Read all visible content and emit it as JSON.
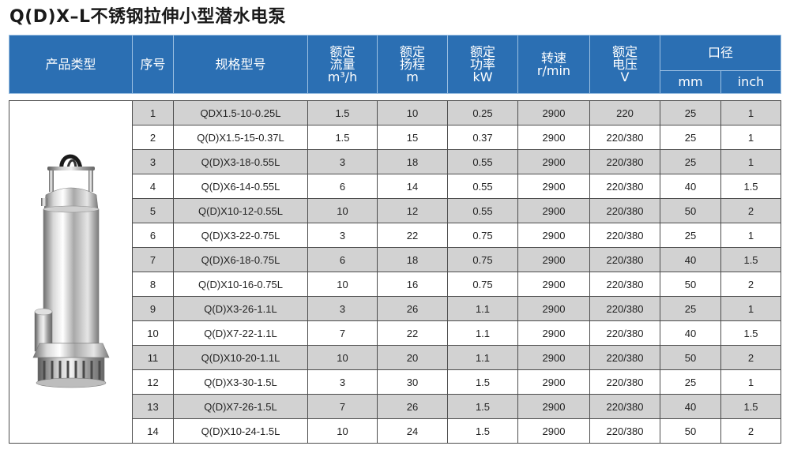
{
  "title": "Q(D)X–L不锈钢拉伸小型潜水电泵",
  "colors": {
    "header_bg": "#2b6fb3",
    "header_text": "#ffffff",
    "shaded_row": "#d2d2d2",
    "plain_row": "#ffffff"
  },
  "product_image": "stainless-steel-submersible-pump",
  "headers": {
    "product_type": "产品类型",
    "seq": "序号",
    "model": "规格型号",
    "flow": [
      "额定",
      "流量",
      "m³/h"
    ],
    "head": [
      "额定",
      "扬程",
      "m"
    ],
    "power": [
      "额定",
      "功率",
      "kW"
    ],
    "speed": [
      "转速",
      "r/min"
    ],
    "voltage": [
      "额定",
      "电压",
      "V"
    ],
    "caliber": "口径",
    "mm": "mm",
    "inch": "inch"
  },
  "rows": [
    {
      "seq": "1",
      "model": "QDX1.5-10-0.25L",
      "flow": "1.5",
      "head": "10",
      "power": "0.25",
      "speed": "2900",
      "voltage": "220",
      "mm": "25",
      "inch": "1"
    },
    {
      "seq": "2",
      "model": "Q(D)X1.5-15-0.37L",
      "flow": "1.5",
      "head": "15",
      "power": "0.37",
      "speed": "2900",
      "voltage": "220/380",
      "mm": "25",
      "inch": "1"
    },
    {
      "seq": "3",
      "model": "Q(D)X3-18-0.55L",
      "flow": "3",
      "head": "18",
      "power": "0.55",
      "speed": "2900",
      "voltage": "220/380",
      "mm": "25",
      "inch": "1"
    },
    {
      "seq": "4",
      "model": "Q(D)X6-14-0.55L",
      "flow": "6",
      "head": "14",
      "power": "0.55",
      "speed": "2900",
      "voltage": "220/380",
      "mm": "40",
      "inch": "1.5"
    },
    {
      "seq": "5",
      "model": "Q(D)X10-12-0.55L",
      "flow": "10",
      "head": "12",
      "power": "0.55",
      "speed": "2900",
      "voltage": "220/380",
      "mm": "50",
      "inch": "2"
    },
    {
      "seq": "6",
      "model": "Q(D)X3-22-0.75L",
      "flow": "3",
      "head": "22",
      "power": "0.75",
      "speed": "2900",
      "voltage": "220/380",
      "mm": "25",
      "inch": "1"
    },
    {
      "seq": "7",
      "model": "Q(D)X6-18-0.75L",
      "flow": "6",
      "head": "18",
      "power": "0.75",
      "speed": "2900",
      "voltage": "220/380",
      "mm": "40",
      "inch": "1.5"
    },
    {
      "seq": "8",
      "model": "Q(D)X10-16-0.75L",
      "flow": "10",
      "head": "16",
      "power": "0.75",
      "speed": "2900",
      "voltage": "220/380",
      "mm": "50",
      "inch": "2"
    },
    {
      "seq": "9",
      "model": "Q(D)X3-26-1.1L",
      "flow": "3",
      "head": "26",
      "power": "1.1",
      "speed": "2900",
      "voltage": "220/380",
      "mm": "25",
      "inch": "1"
    },
    {
      "seq": "10",
      "model": "Q(D)X7-22-1.1L",
      "flow": "7",
      "head": "22",
      "power": "1.1",
      "speed": "2900",
      "voltage": "220/380",
      "mm": "40",
      "inch": "1.5"
    },
    {
      "seq": "11",
      "model": "Q(D)X10-20-1.1L",
      "flow": "10",
      "head": "20",
      "power": "1.1",
      "speed": "2900",
      "voltage": "220/380",
      "mm": "50",
      "inch": "2"
    },
    {
      "seq": "12",
      "model": "Q(D)X3-30-1.5L",
      "flow": "3",
      "head": "30",
      "power": "1.5",
      "speed": "2900",
      "voltage": "220/380",
      "mm": "25",
      "inch": "1"
    },
    {
      "seq": "13",
      "model": "Q(D)X7-26-1.5L",
      "flow": "7",
      "head": "26",
      "power": "1.5",
      "speed": "2900",
      "voltage": "220/380",
      "mm": "40",
      "inch": "1.5"
    },
    {
      "seq": "14",
      "model": "Q(D)X10-24-1.5L",
      "flow": "10",
      "head": "24",
      "power": "1.5",
      "speed": "2900",
      "voltage": "220/380",
      "mm": "50",
      "inch": "2"
    }
  ]
}
